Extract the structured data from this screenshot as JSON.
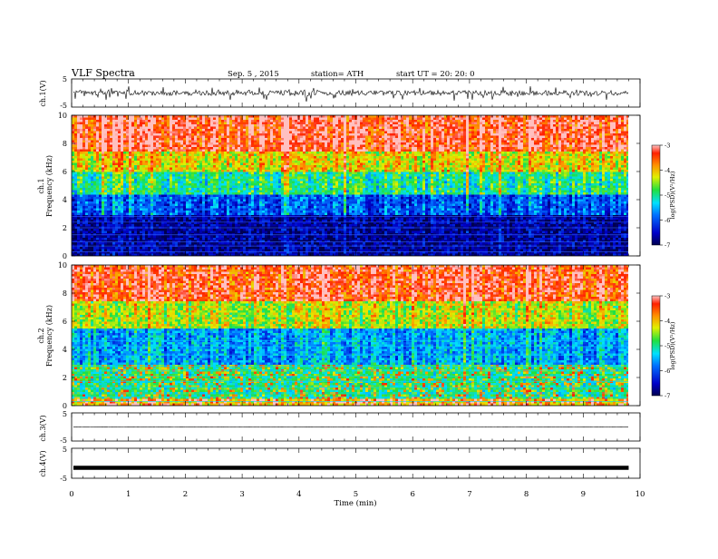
{
  "chart_data": [
    {
      "type": "line",
      "id": "ch1-waveform",
      "ylabel": "ch.1(V)",
      "ylim": [
        -5,
        5
      ],
      "yticks": [
        "5",
        "-5"
      ],
      "trace_color": "#000000",
      "description_level": "noisy signal around 0 V with spikes to about ±2.5 V"
    },
    {
      "type": "heatmap",
      "id": "ch1-spectrogram",
      "panel_label": "ch.1",
      "ylabel": "Frequency (kHz)",
      "ylim": [
        0,
        10
      ],
      "yticks": [
        "0",
        "2",
        "4",
        "6",
        "8",
        "10"
      ],
      "colorbar": {
        "label": "log(PSD)(V²/Hz)",
        "range": [
          -7,
          -3
        ],
        "ticks": [
          "-3",
          "-4",
          "-5",
          "-6",
          "-7"
        ]
      },
      "bands": [
        {
          "from_khz": 7.5,
          "to_khz": 10,
          "log_psd": -3.3
        },
        {
          "from_khz": 6.0,
          "to_khz": 7.5,
          "log_psd": -4.2
        },
        {
          "from_khz": 4.5,
          "to_khz": 6.0,
          "log_psd": -5.0
        },
        {
          "from_khz": 3.0,
          "to_khz": 4.5,
          "log_psd": -6.0
        },
        {
          "from_khz": 0.0,
          "to_khz": 3.0,
          "log_psd": -6.7
        }
      ]
    },
    {
      "type": "heatmap",
      "id": "ch2-spectrogram",
      "panel_label": "ch.2",
      "ylabel": "Frequency (kHz)",
      "ylim": [
        0,
        10
      ],
      "yticks": [
        "0",
        "2",
        "4",
        "6",
        "8",
        "10"
      ],
      "colorbar": {
        "label": "log(PSD)(V²/Hz)",
        "range": [
          -7,
          -3
        ],
        "ticks": [
          "-3",
          "-4",
          "-5",
          "-6",
          "-7"
        ]
      },
      "bands": [
        {
          "from_khz": 7.5,
          "to_khz": 10,
          "log_psd": -3.4
        },
        {
          "from_khz": 5.5,
          "to_khz": 7.5,
          "log_psd": -4.4
        },
        {
          "from_khz": 3.0,
          "to_khz": 5.5,
          "log_psd": -5.6
        },
        {
          "from_khz": 0.5,
          "to_khz": 3.0,
          "log_psd": -5.0
        },
        {
          "from_khz": 0.0,
          "to_khz": 0.5,
          "log_psd": -4.0
        }
      ]
    },
    {
      "type": "line",
      "id": "ch3-waveform",
      "ylabel": "ch.3(V)",
      "ylim": [
        -5,
        5
      ],
      "yticks": [
        "5",
        "-5"
      ],
      "level_v": 0.0
    },
    {
      "type": "line",
      "id": "ch4-waveform",
      "ylabel": "ch.4(V)",
      "ylim": [
        -5,
        5
      ],
      "yticks": [
        "5",
        "-5"
      ],
      "level_v": -1.5
    }
  ],
  "header": {
    "title": "VLF  Spectra",
    "date": "Sep. 5   , 2015",
    "station": "station= ATH",
    "start": "start  UT  =    20: 20: 0"
  },
  "xaxis": {
    "label": "Time  (min)",
    "range": [
      0,
      10
    ],
    "ticks": [
      "0",
      "1",
      "2",
      "3",
      "4",
      "5",
      "6",
      "7",
      "8",
      "9",
      "10"
    ],
    "data_end_min": 9.8
  }
}
